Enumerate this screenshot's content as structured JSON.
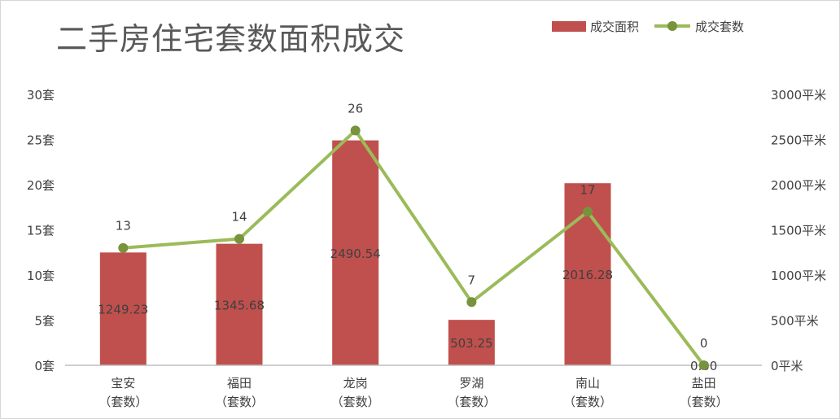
{
  "chart_data": {
    "type": "bar",
    "title": "二手房住宅套数面积成交",
    "categories": [
      "宝安\n（套数）",
      "福田\n（套数）",
      "龙岗\n（套数）",
      "罗湖\n（套数）",
      "南山\n（套数）",
      "盐田\n（套数）"
    ],
    "series": [
      {
        "name": "成交面积",
        "type": "bar",
        "axis": "right",
        "color": "#c0504d",
        "values": [
          1249.23,
          1345.68,
          2490.54,
          503.25,
          2016.28,
          0
        ],
        "labels": [
          "1249.23",
          "1345.68",
          "2490.54",
          "503.25",
          "2016.28",
          "0.00"
        ]
      },
      {
        "name": "成交套数",
        "type": "line",
        "axis": "left",
        "color": "#9bbb59",
        "marker_color": "#77933c",
        "values": [
          13,
          14,
          26,
          7,
          17,
          0
        ],
        "labels": [
          "13",
          "14",
          "26",
          "7",
          "17",
          "0"
        ]
      }
    ],
    "y_left": {
      "ylim": [
        0,
        30
      ],
      "ticks": [
        0,
        5,
        10,
        15,
        20,
        25,
        30
      ],
      "tick_labels": [
        "0套",
        "5套",
        "10套",
        "15套",
        "20套",
        "25套",
        "30套"
      ]
    },
    "y_right": {
      "ylim": [
        0,
        3000
      ],
      "ticks": [
        0,
        500,
        1000,
        1500,
        2000,
        2500,
        3000
      ],
      "tick_labels": [
        "0平米",
        "500平米",
        "1000平米",
        "1500平米",
        "2000平米",
        "2500平米",
        "3000平米"
      ]
    },
    "grid": false,
    "legend": "top-right"
  }
}
